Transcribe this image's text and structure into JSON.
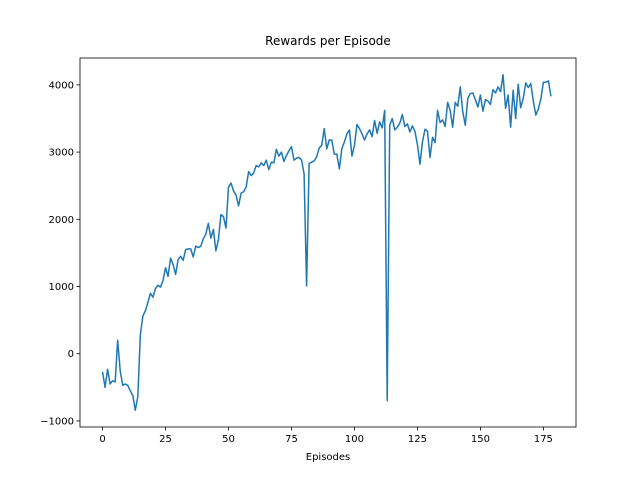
{
  "chart_data": {
    "type": "line",
    "title": "Rewards per Episode",
    "xlabel": "Episodes",
    "x": [
      0,
      1,
      2,
      3,
      4,
      5,
      6,
      7,
      8,
      9,
      10,
      11,
      12,
      13,
      14,
      15,
      16,
      17,
      18,
      19,
      20,
      21,
      22,
      23,
      24,
      25,
      26,
      27,
      28,
      29,
      30,
      31,
      32,
      33,
      34,
      35,
      36,
      37,
      38,
      39,
      40,
      41,
      42,
      43,
      44,
      45,
      46,
      47,
      48,
      49,
      50,
      51,
      52,
      53,
      54,
      55,
      56,
      57,
      58,
      59,
      60,
      61,
      62,
      63,
      64,
      65,
      66,
      67,
      68,
      69,
      70,
      71,
      72,
      73,
      74,
      75,
      76,
      77,
      78,
      79,
      80,
      81,
      82,
      83,
      84,
      85,
      86,
      87,
      88,
      89,
      90,
      91,
      92,
      93,
      94,
      95,
      96,
      97,
      98,
      99,
      100,
      101,
      102,
      103,
      104,
      105,
      106,
      107,
      108,
      109,
      110,
      111,
      112,
      113,
      114,
      115,
      116,
      117,
      118,
      119,
      120,
      121,
      122,
      123,
      124,
      125,
      126,
      127,
      128,
      129,
      130,
      131,
      132,
      133,
      134,
      135,
      136,
      137,
      138,
      139,
      140,
      141,
      142,
      143,
      144,
      145,
      146,
      147,
      148,
      149,
      150,
      151,
      152,
      153,
      154,
      155,
      156,
      157,
      158,
      159,
      160,
      161,
      162,
      163,
      164,
      165,
      166,
      167,
      168,
      169,
      170,
      171,
      172,
      173,
      174,
      175,
      176,
      177,
      178
    ],
    "series": [
      {
        "color": "#1f77b4",
        "values": [
          -270,
          -500,
          -230,
          -450,
          -400,
          -420,
          200,
          -250,
          -470,
          -450,
          -470,
          -550,
          -620,
          -840,
          -640,
          280,
          560,
          640,
          760,
          900,
          840,
          970,
          1020,
          990,
          1090,
          1280,
          1150,
          1420,
          1330,
          1180,
          1400,
          1450,
          1390,
          1550,
          1560,
          1560,
          1440,
          1600,
          1580,
          1600,
          1710,
          1780,
          1940,
          1720,
          1850,
          1530,
          1700,
          2070,
          2040,
          1870,
          2480,
          2540,
          2420,
          2360,
          2200,
          2390,
          2410,
          2480,
          2710,
          2650,
          2690,
          2800,
          2780,
          2840,
          2800,
          2880,
          2740,
          2850,
          2840,
          3040,
          2940,
          3000,
          2860,
          2950,
          3020,
          3080,
          2880,
          2910,
          2920,
          2880,
          2680,
          1010,
          2830,
          2850,
          2870,
          2930,
          3060,
          3100,
          3350,
          3050,
          3180,
          3180,
          2970,
          2970,
          2750,
          3050,
          3150,
          3270,
          3330,
          2940,
          3100,
          3410,
          3350,
          3270,
          3180,
          3270,
          3330,
          3230,
          3470,
          3280,
          3450,
          3360,
          3620,
          -700,
          3400,
          3500,
          3330,
          3370,
          3430,
          3560,
          3380,
          3420,
          3300,
          3390,
          3310,
          3110,
          2820,
          3150,
          3340,
          3310,
          2920,
          3220,
          3140,
          3620,
          3440,
          3480,
          3380,
          3740,
          3620,
          3370,
          3740,
          3680,
          3970,
          3600,
          3400,
          3800,
          3870,
          3880,
          3780,
          3670,
          3850,
          3610,
          3780,
          3760,
          3710,
          3930,
          3880,
          3970,
          3900,
          4150,
          3650,
          3850,
          3370,
          3920,
          3500,
          4010,
          3660,
          3800,
          4030,
          3960,
          4020,
          3760,
          3550,
          3640,
          3790,
          4040,
          4040,
          4060,
          3830
        ]
      }
    ],
    "xlim": [
      -8.95,
      187.95
    ],
    "ylim": [
      -1090,
      4400
    ],
    "xticks": [
      0,
      25,
      50,
      75,
      100,
      125,
      150,
      175
    ],
    "yticks": [
      {
        "value": -1000,
        "label": "−1000"
      },
      0,
      1000,
      2000,
      3000,
      4000
    ]
  }
}
